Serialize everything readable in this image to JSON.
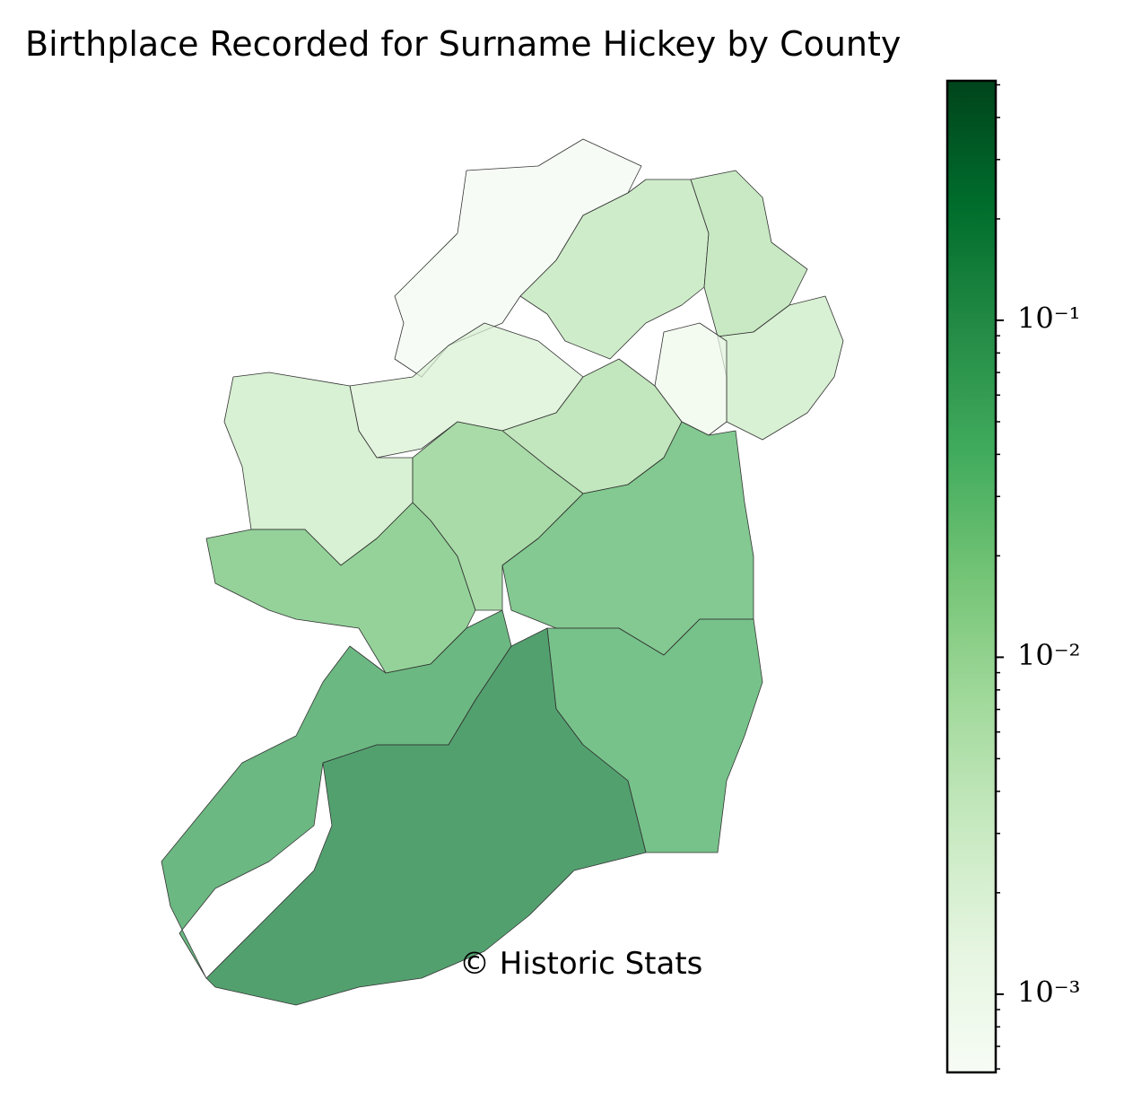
{
  "chart_data": {
    "type": "choropleth",
    "title": "Birthplace Recorded for Surname Hickey by County",
    "watermark": "© Historic Stats",
    "values": [
      0.0007,
      0.004,
      0.005,
      0.003,
      0.0009,
      0.002,
      0.003,
      0.006,
      0.012,
      0.02,
      0.03,
      0.04,
      0.06,
      0.15
    ],
    "colormap": [
      "#f7fcf5",
      "#e5f5e0",
      "#c7e9c0",
      "#a1d99b",
      "#74c476",
      "#41ab5d",
      "#238b45",
      "#006d2c",
      "#00441b"
    ],
    "log_scale": true,
    "ylim": [
      0.000586,
      0.514
    ],
    "yticks": [
      {
        "value": 0.1,
        "label": "10⁻¹"
      },
      {
        "value": 0.01,
        "label": "10⁻²"
      },
      {
        "value": 0.001,
        "label": "10⁻³"
      }
    ],
    "yticks_minor": [
      0.0006,
      0.0007,
      0.0008,
      0.0009,
      0.002,
      0.003,
      0.004,
      0.005,
      0.006,
      0.007,
      0.008,
      0.009,
      0.02,
      0.03,
      0.04,
      0.05,
      0.06,
      0.07,
      0.08,
      0.09,
      0.2,
      0.3,
      0.4,
      0.5
    ]
  }
}
